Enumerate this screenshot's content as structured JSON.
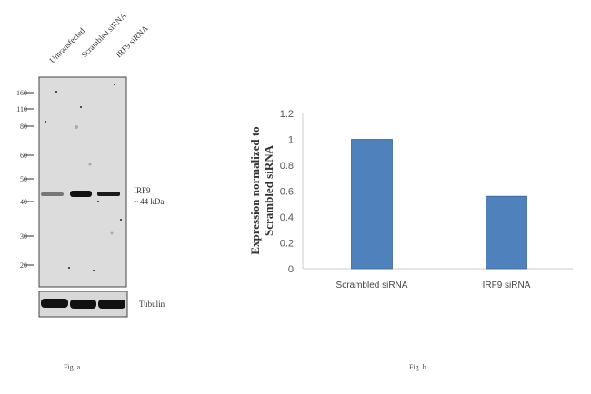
{
  "blot": {
    "lane_labels": [
      "Untransfected",
      "Scrambled siRNA",
      "IRF9 siRNA"
    ],
    "markers": [
      "160",
      "110",
      "80",
      "60",
      "50",
      "40",
      "30",
      "20"
    ],
    "band_label": "IRF9",
    "band_size": "~ 44 kDa",
    "loading_control": "Tubulin",
    "caption": "Fig. a"
  },
  "chart_data": {
    "type": "bar",
    "categories": [
      "Scrambled siRNA",
      "IRF9 siRNA"
    ],
    "values": [
      1.0,
      0.56
    ],
    "ylabel_line1": "Expression  normalized to",
    "ylabel_line2": "Scrambled siRNA",
    "ylim": [
      0,
      1.2
    ],
    "yticks": [
      "0",
      "0.2",
      "0.4",
      "0.6",
      "0.8",
      "1",
      "1.2"
    ],
    "grid": false,
    "bar_color": "#4f81bd",
    "caption": "Fig. b"
  }
}
